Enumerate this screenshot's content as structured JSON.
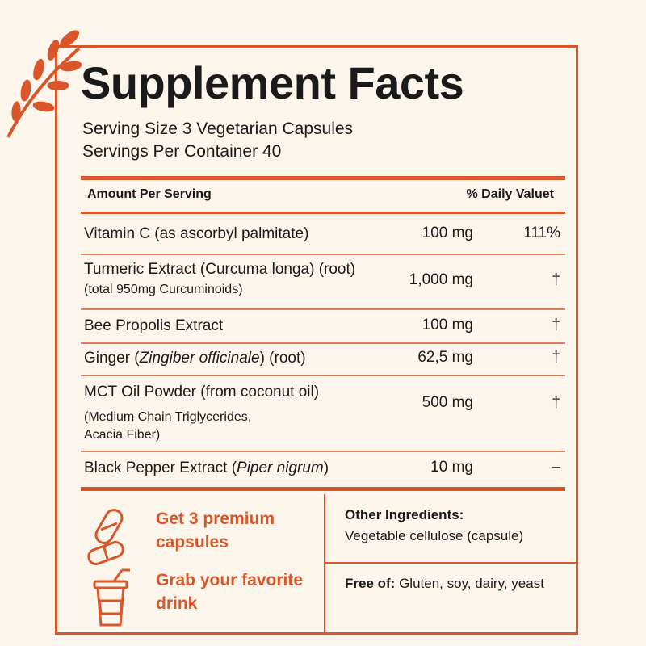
{
  "title": "Supplement Facts",
  "serving_size": "Serving Size 3 Vegetarian Capsules",
  "servings_per_container": "Servings Per Container 40",
  "header": {
    "amount_per_serving": "Amount Per Serving",
    "daily_value": "% Daily Valuet"
  },
  "ingredients": [
    {
      "name": "Vitamin C (as ascorbyl palmitate)",
      "amount": "100 mg",
      "dv": "111%"
    },
    {
      "name": "Turmeric Extract (Curcuma longa) (root)",
      "sub": "(total 950mg Curcuminoids)",
      "amount": "1,000 mg",
      "dv": "†"
    },
    {
      "name": "Bee Propolis Extract",
      "amount": "100 mg",
      "dv": "†"
    },
    {
      "name_prefix": "Ginger (",
      "name_italic": "Zingiber officinale",
      "name_suffix": ") (root)",
      "amount": "62,5 mg",
      "dv": "†"
    },
    {
      "name": "MCT Oil Powder (from coconut oil)",
      "sub1": "(Medium Chain Triglycerides,",
      "sub2": "Acacia Fiber)",
      "amount": "500 mg",
      "dv": "†"
    },
    {
      "name_prefix": "Black Pepper Extract (",
      "name_italic": "Piper nigrum",
      "name_suffix": ")",
      "amount": "10 mg",
      "dv": "–"
    }
  ],
  "promo": {
    "step1": "Get 3 premium capsules",
    "step2": "Grab your favorite drink"
  },
  "other_ingredients": {
    "label": "Other Ingredients:",
    "value": "Vegetable cellulose (capsule)"
  },
  "free_of": {
    "label": "Free of:",
    "value": "Gluten, soy, dairy, yeast"
  },
  "colors": {
    "accent": "#d9562b",
    "background": "#fbf5ec",
    "text": "#1a1a1a"
  }
}
